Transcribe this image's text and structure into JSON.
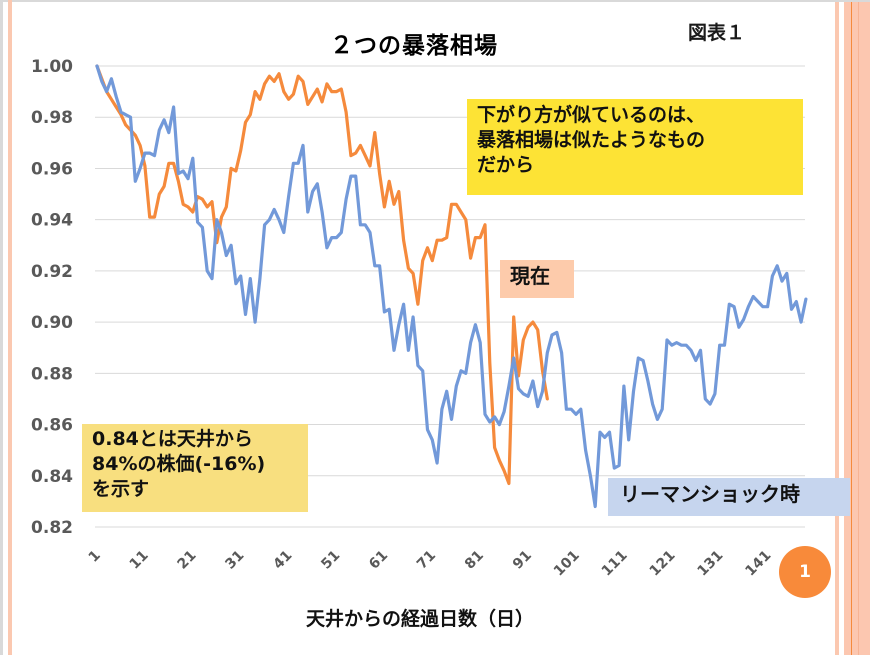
{
  "slide": {
    "figure_label": "図表１",
    "page_number": "1",
    "colors": {
      "current_series": "#f58a3c",
      "lehman_series": "#7299d9",
      "yellow_note": "#fde335",
      "now_note": "#fdcbab",
      "ratio_note": "#f8df7f",
      "lehman_note": "#c6d5ee",
      "badge": "#f88a3a"
    }
  },
  "annotations": {
    "similarity_note": [
      "下がり方が似ているのは、",
      "暴落相場は似たようなもの",
      "だから"
    ],
    "now_label": "現在",
    "ratio_note": [
      "0.84とは天井から",
      "84%の株価(-16%)",
      "を示す"
    ],
    "lehman_label": "リーマンショック時"
  },
  "chart_data": {
    "type": "line",
    "title": "２つの暴落相場",
    "xlabel": "天井からの経過日数（日）",
    "ylabel": "",
    "ylim": [
      0.82,
      1.0
    ],
    "xlim": [
      1,
      148
    ],
    "grid": true,
    "legend": "none",
    "yticks": [
      "1.00",
      "0.98",
      "0.96",
      "0.94",
      "0.92",
      "0.90",
      "0.88",
      "0.86",
      "0.84",
      "0.82"
    ],
    "xticks": [
      "1",
      "11",
      "21",
      "31",
      "41",
      "51",
      "61",
      "71",
      "81",
      "91",
      "101",
      "111",
      "121",
      "131",
      "141"
    ],
    "series": [
      {
        "name": "現在",
        "x_start": 1,
        "values": [
          1.0,
          0.995,
          0.99,
          0.987,
          0.984,
          0.981,
          0.977,
          0.975,
          0.973,
          0.969,
          0.961,
          0.941,
          0.941,
          0.95,
          0.953,
          0.962,
          0.962,
          0.955,
          0.946,
          0.945,
          0.943,
          0.949,
          0.948,
          0.945,
          0.947,
          0.931,
          0.941,
          0.945,
          0.96,
          0.959,
          0.967,
          0.978,
          0.981,
          0.99,
          0.987,
          0.993,
          0.996,
          0.994,
          0.997,
          0.99,
          0.987,
          0.989,
          0.996,
          0.994,
          0.985,
          0.988,
          0.991,
          0.986,
          0.993,
          0.99,
          0.99,
          0.991,
          0.982,
          0.965,
          0.966,
          0.969,
          0.965,
          0.961,
          0.974,
          0.958,
          0.945,
          0.955,
          0.946,
          0.951,
          0.932,
          0.921,
          0.919,
          0.907,
          0.924,
          0.929,
          0.924,
          0.932,
          0.932,
          0.933,
          0.946,
          0.946,
          0.943,
          0.94,
          0.925,
          0.933,
          0.933,
          0.938,
          0.884,
          0.851,
          0.846,
          0.842,
          0.837,
          0.902,
          0.879,
          0.893,
          0.898,
          0.9,
          0.897,
          0.881,
          0.87
        ]
      },
      {
        "name": "リーマンショック時",
        "x_start": 1,
        "values": [
          1.0,
          0.994,
          0.99,
          0.995,
          0.988,
          0.982,
          0.981,
          0.98,
          0.955,
          0.96,
          0.966,
          0.966,
          0.965,
          0.975,
          0.979,
          0.974,
          0.984,
          0.958,
          0.959,
          0.956,
          0.964,
          0.939,
          0.937,
          0.92,
          0.917,
          0.94,
          0.935,
          0.926,
          0.93,
          0.915,
          0.918,
          0.903,
          0.917,
          0.9,
          0.917,
          0.938,
          0.94,
          0.944,
          0.94,
          0.935,
          0.949,
          0.962,
          0.962,
          0.969,
          0.943,
          0.951,
          0.954,
          0.943,
          0.929,
          0.933,
          0.933,
          0.935,
          0.948,
          0.957,
          0.957,
          0.938,
          0.938,
          0.935,
          0.922,
          0.922,
          0.904,
          0.905,
          0.889,
          0.899,
          0.907,
          0.889,
          0.902,
          0.883,
          0.881,
          0.858,
          0.854,
          0.845,
          0.866,
          0.873,
          0.862,
          0.875,
          0.881,
          0.88,
          0.892,
          0.899,
          0.892,
          0.864,
          0.861,
          0.863,
          0.86,
          0.865,
          0.875,
          0.886,
          0.874,
          0.872,
          0.871,
          0.877,
          0.867,
          0.873,
          0.888,
          0.895,
          0.896,
          0.888,
          0.866,
          0.866,
          0.864,
          0.866,
          0.85,
          0.84,
          0.828,
          0.857,
          0.855,
          0.857,
          0.843,
          0.844,
          0.875,
          0.854,
          0.873,
          0.886,
          0.885,
          0.877,
          0.868,
          0.862,
          0.866,
          0.893,
          0.891,
          0.892,
          0.891,
          0.891,
          0.889,
          0.885,
          0.889,
          0.87,
          0.868,
          0.872,
          0.891,
          0.891,
          0.907,
          0.906,
          0.898,
          0.901,
          0.906,
          0.91,
          0.908,
          0.906,
          0.906,
          0.918,
          0.922,
          0.916,
          0.919,
          0.905,
          0.908,
          0.9,
          0.909
        ]
      }
    ]
  }
}
